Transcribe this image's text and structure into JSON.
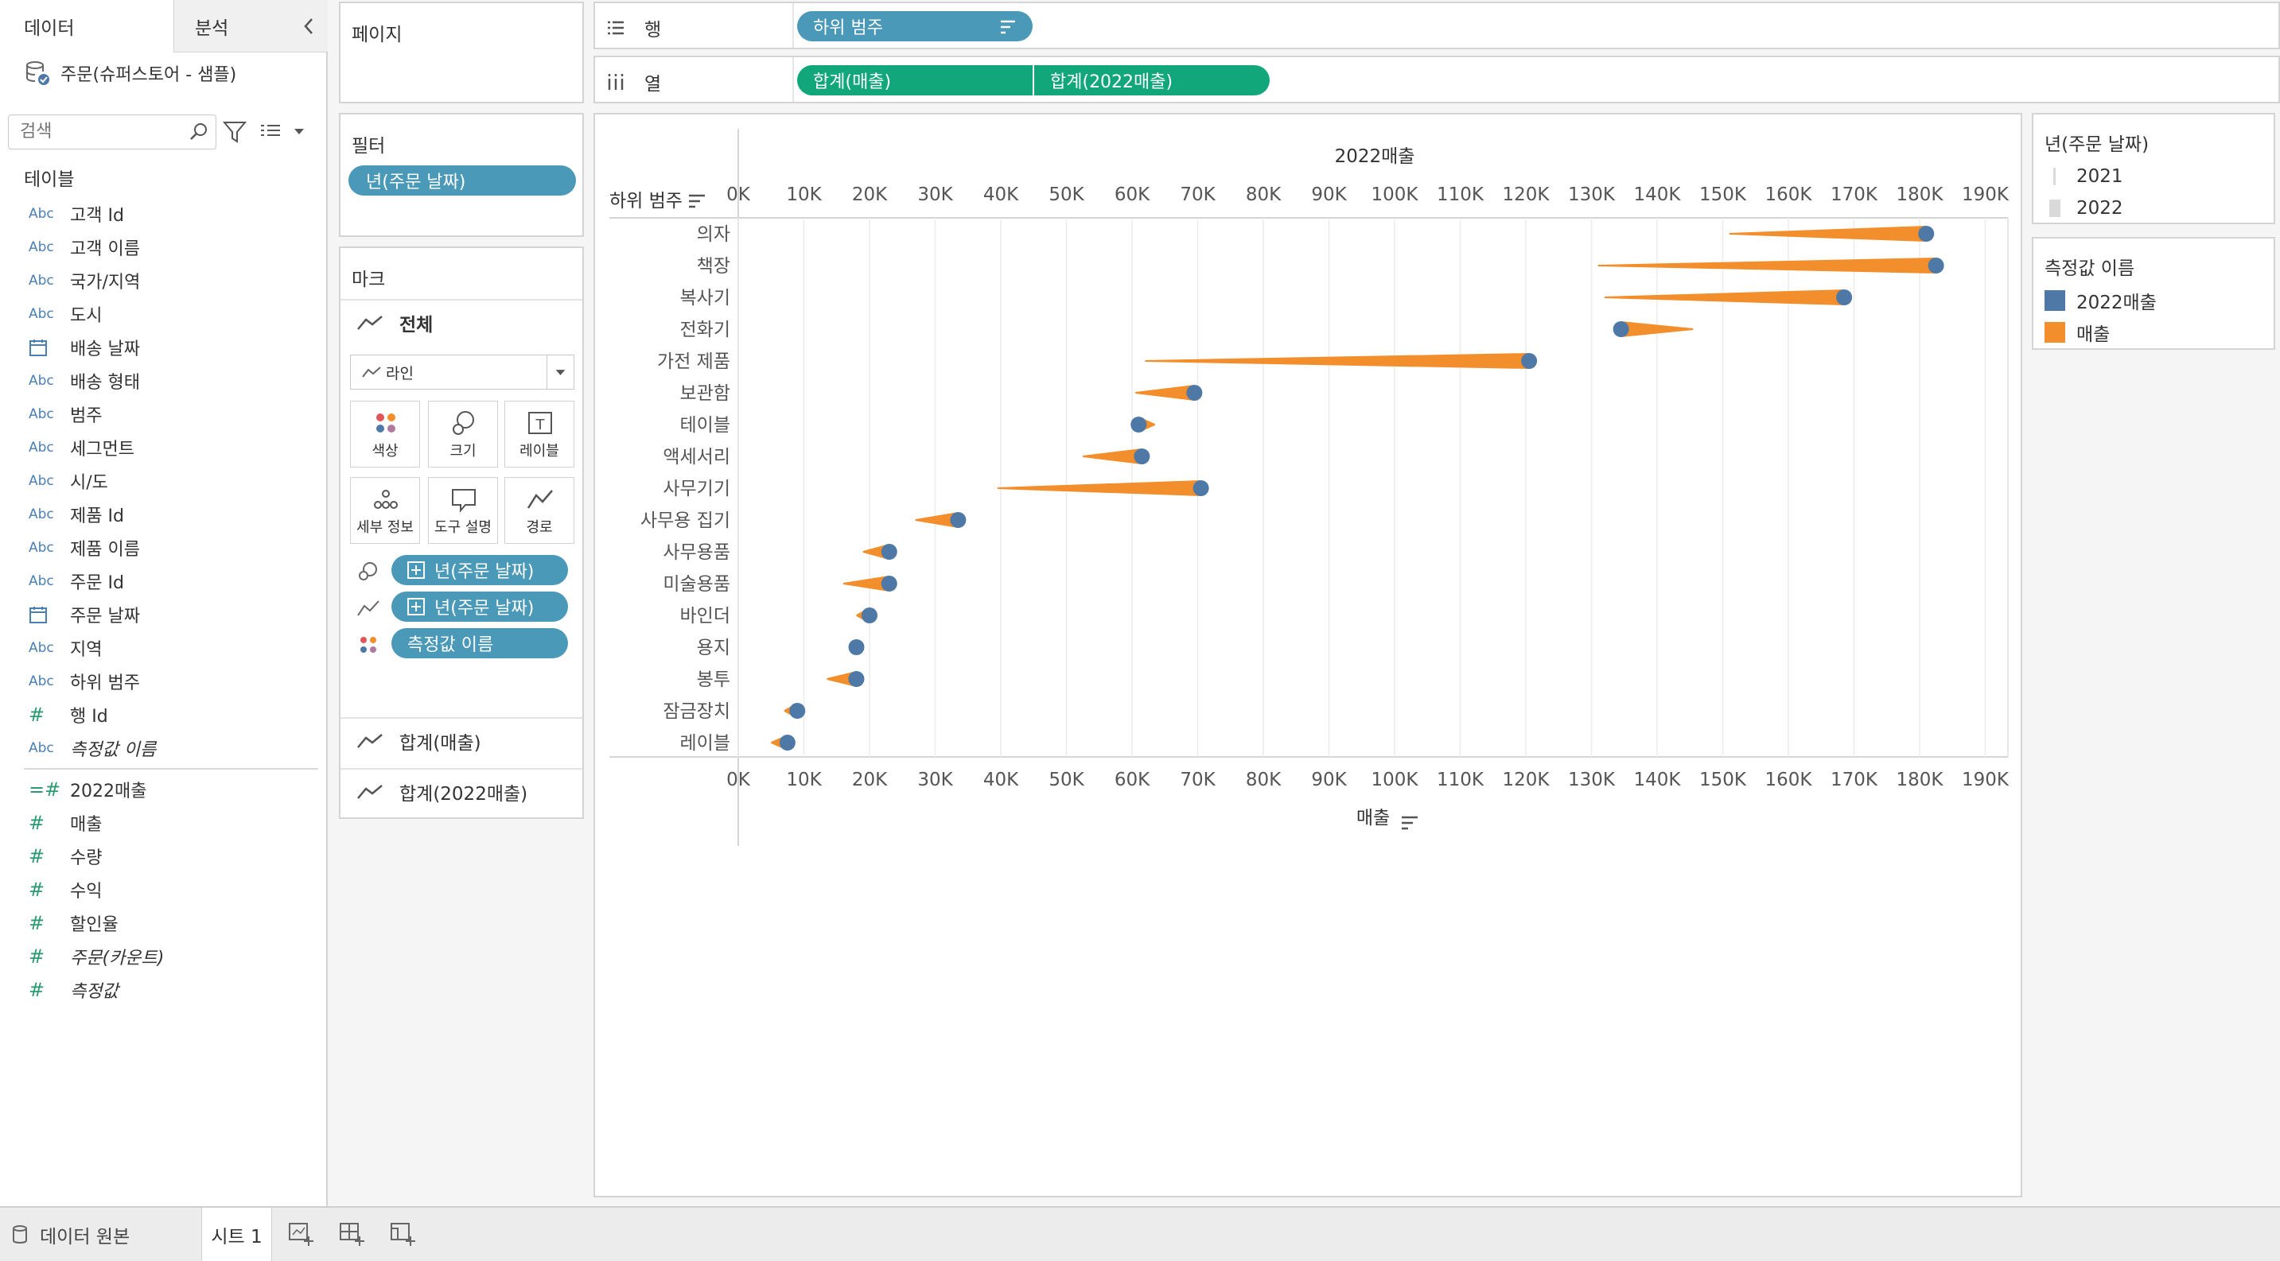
{
  "data_pane": {
    "tab_data": "데이터",
    "tab_analysis": "분석",
    "datasource_name": "주문(슈퍼스토어 - 샘플)",
    "search_placeholder": "검색",
    "tables_heading": "테이블",
    "dimension_fields": [
      {
        "name": "고객 Id",
        "type": "Abc"
      },
      {
        "name": "고객 이름",
        "type": "Abc"
      },
      {
        "name": "국가/지역",
        "type": "Abc"
      },
      {
        "name": "도시",
        "type": "Abc"
      },
      {
        "name": "배송 날짜",
        "type": "calendar"
      },
      {
        "name": "배송 형태",
        "type": "Abc"
      },
      {
        "name": "범주",
        "type": "Abc"
      },
      {
        "name": "세그먼트",
        "type": "Abc"
      },
      {
        "name": "시/도",
        "type": "Abc"
      },
      {
        "name": "제품 Id",
        "type": "Abc"
      },
      {
        "name": "제품 이름",
        "type": "Abc"
      },
      {
        "name": "주문 Id",
        "type": "Abc"
      },
      {
        "name": "주문 날짜",
        "type": "calendar"
      },
      {
        "name": "지역",
        "type": "Abc"
      },
      {
        "name": "하위 범주",
        "type": "Abc"
      },
      {
        "name": "행 Id",
        "type": "#"
      },
      {
        "name": "측정값 이름",
        "type": "Abc",
        "italic": true
      }
    ],
    "measure_fields": [
      {
        "name": "2022매출",
        "type": "=#"
      },
      {
        "name": "매출",
        "type": "#"
      },
      {
        "name": "수량",
        "type": "#"
      },
      {
        "name": "수익",
        "type": "#"
      },
      {
        "name": "할인율",
        "type": "#"
      },
      {
        "name": "주문(카운트)",
        "type": "#",
        "italic": true
      },
      {
        "name": "측정값",
        "type": "#",
        "italic": true
      }
    ]
  },
  "bottom_bar": {
    "datasource_tab": "데이터 원본",
    "sheet_tab": "시트 1"
  },
  "pages_card": {
    "title": "페이지"
  },
  "filters_card": {
    "title": "필터",
    "pill": "년(주문 날짜)"
  },
  "marks_card": {
    "title": "마크",
    "all_label": "전체",
    "mark_type": "라인",
    "buttons": {
      "color": "색상",
      "size": "크기",
      "label": "레이블",
      "detail": "세부 정보",
      "tooltip": "도구 설명",
      "path": "경로"
    },
    "encodings": [
      {
        "icon": "size-icon",
        "pill": "년(주문 날짜)"
      },
      {
        "icon": "path-icon",
        "pill": "년(주문 날짜)"
      },
      {
        "icon": "color-icon",
        "pill": "측정값 이름"
      }
    ],
    "sub_cards": [
      "합계(매출)",
      "합계(2022매출)"
    ]
  },
  "rows_shelf": {
    "label": "행",
    "pill": "하위 범주"
  },
  "cols_shelf": {
    "label": "열",
    "pills": [
      "합계(매출)",
      "합계(2022매출)"
    ]
  },
  "legend_year": {
    "title": "년(주문 날짜)",
    "items": [
      "2021",
      "2022"
    ]
  },
  "legend_measure": {
    "title": "측정값 이름",
    "items": [
      "2022매출",
      "매출"
    ]
  },
  "colors": {
    "accent_blue_pill": "#4b99b8",
    "accent_green_pill": "#11a77a",
    "series_2022": "#4e79a7",
    "series_sales": "#f28e2b"
  },
  "chart_data": {
    "type": "line",
    "row_header": "하위 범주",
    "top_axis_title": "2022매출",
    "bottom_axis_title": "매출",
    "xlim": [
      0,
      190000
    ],
    "ticks": [
      "0K",
      "10K",
      "20K",
      "30K",
      "40K",
      "50K",
      "60K",
      "70K",
      "80K",
      "90K",
      "100K",
      "110K",
      "120K",
      "130K",
      "140K",
      "150K",
      "160K",
      "170K",
      "180K",
      "190K"
    ],
    "categories": [
      "의자",
      "책장",
      "복사기",
      "전화기",
      "가전 제품",
      "보관함",
      "테이블",
      "액세서리",
      "사무기기",
      "사무용 집기",
      "사무용품",
      "미술용품",
      "바인더",
      "용지",
      "봉투",
      "잠금장치",
      "레이블"
    ],
    "series": [
      {
        "name": "2022매출",
        "values": [
          181000,
          182500,
          168500,
          134500,
          120500,
          69500,
          61000,
          61500,
          70500,
          33500,
          23000,
          23000,
          20000,
          18000,
          18000,
          9000,
          7500
        ]
      },
      {
        "name": "매출",
        "values": [
          151000,
          131000,
          132000,
          145500,
          62000,
          60500,
          63500,
          52500,
          39500,
          27000,
          19000,
          16000,
          18000,
          17500,
          13500,
          7000,
          5000
        ]
      }
    ]
  }
}
